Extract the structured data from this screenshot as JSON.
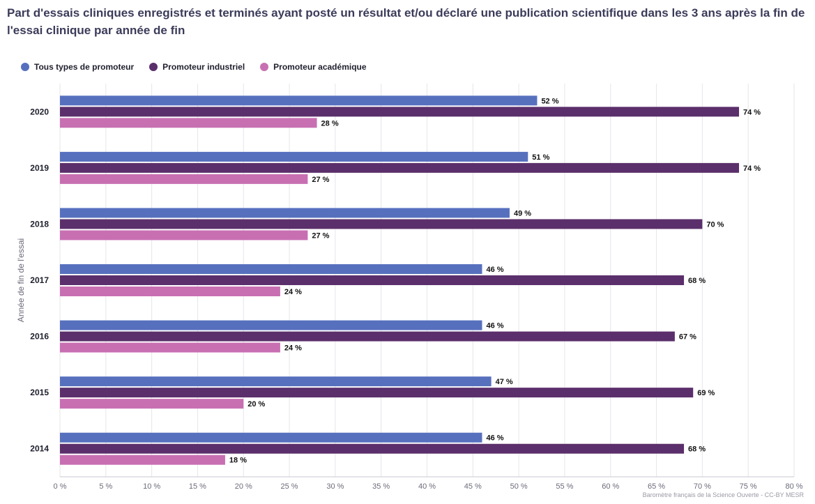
{
  "title": "Part d'essais cliniques enregistrés et terminés ayant posté un résultat et/ou déclaré une publication scientifique dans les 3 ans après la fin de l'essai clinique par année de fin",
  "credit": "Baromètre français de la Science Ouverte - CC-BY MESR",
  "chart_data": {
    "type": "bar",
    "orientation": "horizontal",
    "title": "Part d'essais cliniques enregistrés et terminés ayant posté un résultat et/ou déclaré une publication scientifique dans les 3 ans après la fin de l'essai clinique par année de fin",
    "ylabel": "Année de fin de l'essai",
    "xlabel": "",
    "categories": [
      "2020",
      "2019",
      "2018",
      "2017",
      "2016",
      "2015",
      "2014"
    ],
    "series": [
      {
        "name": "Tous types de promoteur",
        "color": "#5770be",
        "values": [
          52,
          51,
          49,
          46,
          46,
          47,
          46
        ]
      },
      {
        "name": "Promoteur industriel",
        "color": "#5b2f6b",
        "values": [
          74,
          74,
          70,
          68,
          67,
          69,
          68
        ]
      },
      {
        "name": "Promoteur académique",
        "color": "#c86fb2",
        "values": [
          28,
          27,
          27,
          24,
          24,
          20,
          18
        ]
      }
    ],
    "xlim": [
      0,
      80
    ],
    "xticks": [
      0,
      5,
      10,
      15,
      20,
      25,
      30,
      35,
      40,
      45,
      50,
      55,
      60,
      65,
      70,
      75,
      80
    ],
    "tick_suffix": " %",
    "value_suffix": " %",
    "grid": true,
    "legend_position": "top-left"
  }
}
